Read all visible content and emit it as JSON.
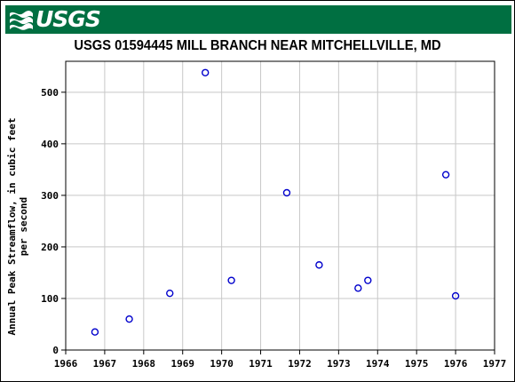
{
  "banner": {
    "logo_text": "USGS",
    "color": "#006f41"
  },
  "chart_data": {
    "type": "scatter",
    "title": "USGS 01594445 MILL BRANCH NEAR MITCHELLVILLE, MD",
    "ylabel": "Annual Peak Streamflow, in cubic feet\nper second",
    "xlabel": "",
    "xlim": [
      1966,
      1977
    ],
    "ylim": [
      0,
      560
    ],
    "x_ticks": [
      "1966",
      "1967",
      "1968",
      "1969",
      "1970",
      "1971",
      "1972",
      "1973",
      "1974",
      "1975",
      "1976",
      "1977"
    ],
    "y_ticks": [
      "0",
      "100",
      "200",
      "300",
      "400",
      "500"
    ],
    "grid": true,
    "marker": "open-circle",
    "marker_color": "#0000cc",
    "series": [
      {
        "x": [
          1966.75,
          1967.63,
          1968.67,
          1969.58,
          1970.25,
          1971.67,
          1972.5,
          1973.5,
          1973.75,
          1975.75,
          1976.0
        ],
        "y": [
          35,
          60,
          110,
          538,
          135,
          305,
          165,
          120,
          135,
          340,
          105
        ]
      }
    ]
  }
}
